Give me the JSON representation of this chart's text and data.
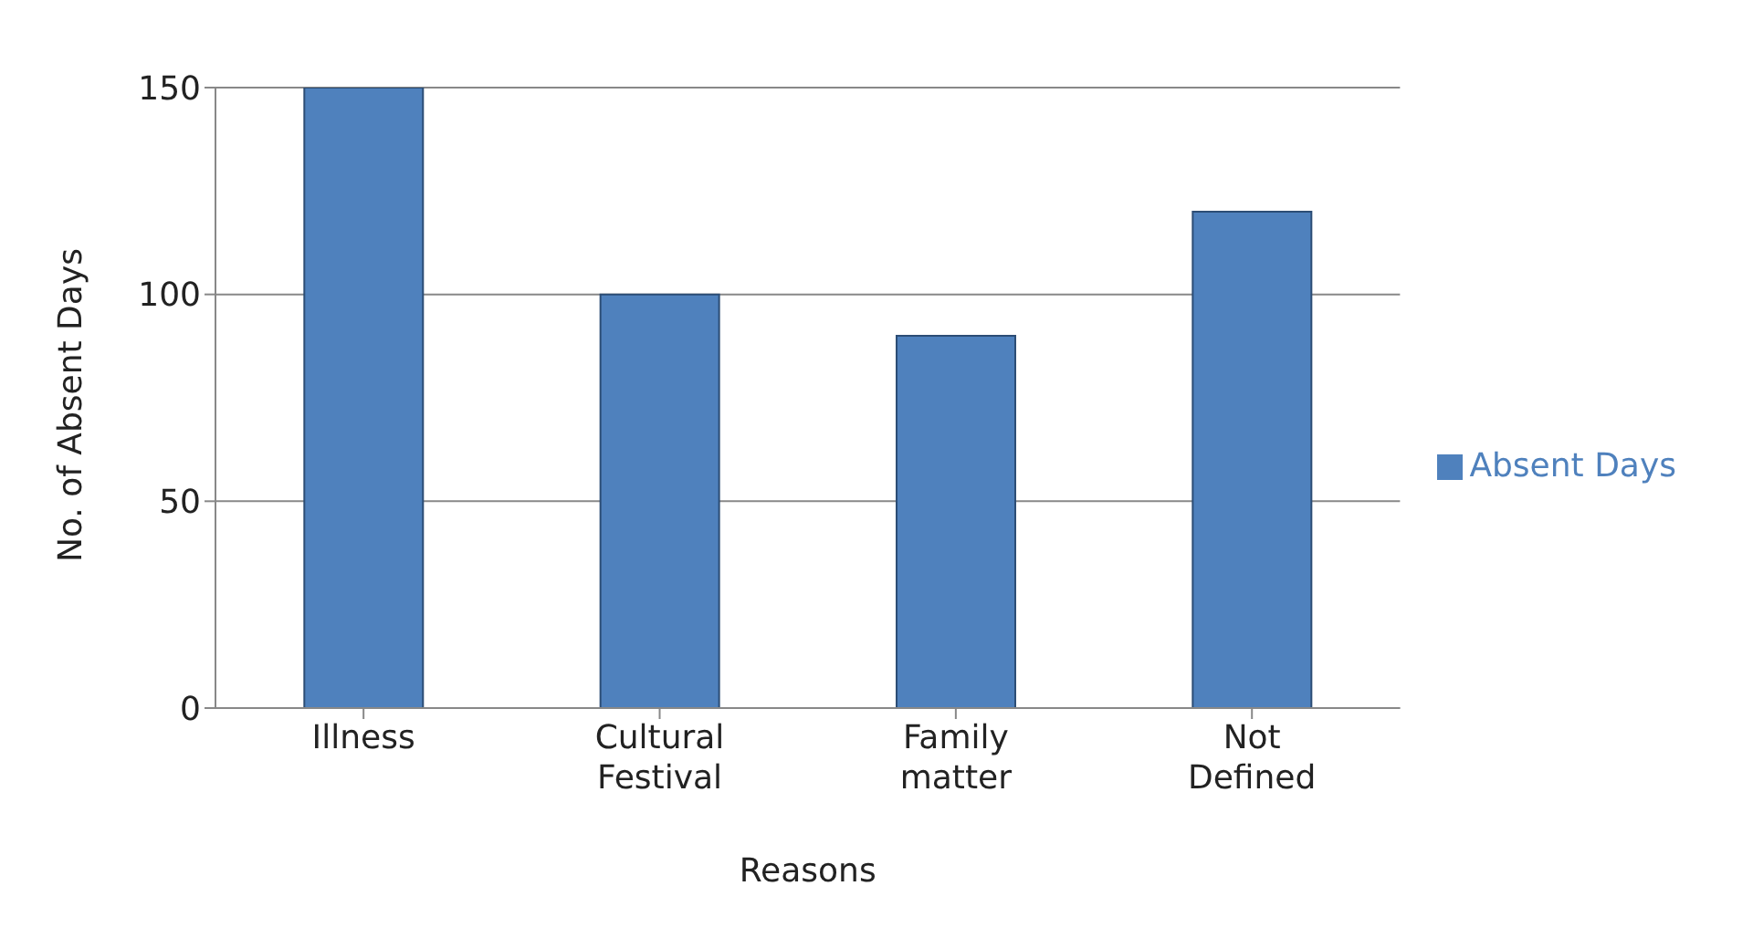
{
  "chart_data": {
    "type": "bar",
    "xlabel": "Reasons",
    "ylabel": "No. of Absent Days",
    "categories": [
      "Illness",
      "Cultural Festival",
      "Family matter",
      "Not Defined"
    ],
    "series": [
      {
        "name": "Absent Days",
        "color": "#4f81bd",
        "values": [
          150,
          100,
          90,
          120
        ]
      }
    ],
    "ylim": [
      0,
      150
    ],
    "yticks": [
      0,
      50,
      100,
      150
    ],
    "grid": "y",
    "legend": "right"
  }
}
